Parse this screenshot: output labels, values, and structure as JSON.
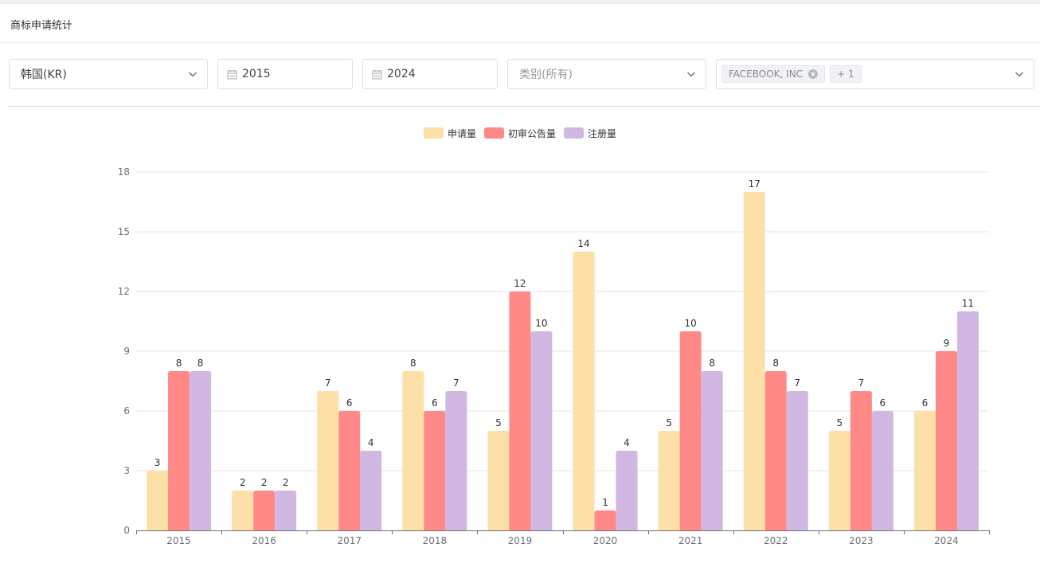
{
  "panel": {
    "title": "商标申请统计"
  },
  "filters": {
    "country": "韩国(KR)",
    "start_year": "2015",
    "end_year": "2024",
    "category_placeholder": "类别(所有)",
    "applicant_tag": "FACEBOOK, INC",
    "applicant_more": "+ 1"
  },
  "icons": {
    "country_chevron": "chevron-down-icon",
    "start_date": "calendar-icon",
    "end_date": "calendar-icon",
    "category_chevron": "chevron-down-icon",
    "tag_close": "close-circle-icon",
    "applicant_chevron": "chevron-down-icon"
  },
  "chart_data": {
    "type": "bar",
    "title": "",
    "xlabel": "",
    "ylabel": "",
    "ylim": [
      0,
      18
    ],
    "yticks": [
      0,
      3,
      6,
      9,
      12,
      15,
      18
    ],
    "grid": "horizontal",
    "legend_position": "top-center",
    "categories": [
      "2015",
      "2016",
      "2017",
      "2018",
      "2019",
      "2020",
      "2021",
      "2022",
      "2023",
      "2024"
    ],
    "series": [
      {
        "name": "申请量",
        "color": "#fde0a8",
        "values": [
          3,
          2,
          7,
          8,
          5,
          14,
          5,
          17,
          5,
          6
        ]
      },
      {
        "name": "初审公告量",
        "color": "#fe8986",
        "values": [
          8,
          2,
          6,
          6,
          12,
          1,
          10,
          8,
          7,
          9
        ]
      },
      {
        "name": "注册量",
        "color": "#d1b8e2",
        "values": [
          8,
          2,
          4,
          7,
          10,
          4,
          8,
          7,
          6,
          11
        ]
      }
    ]
  }
}
